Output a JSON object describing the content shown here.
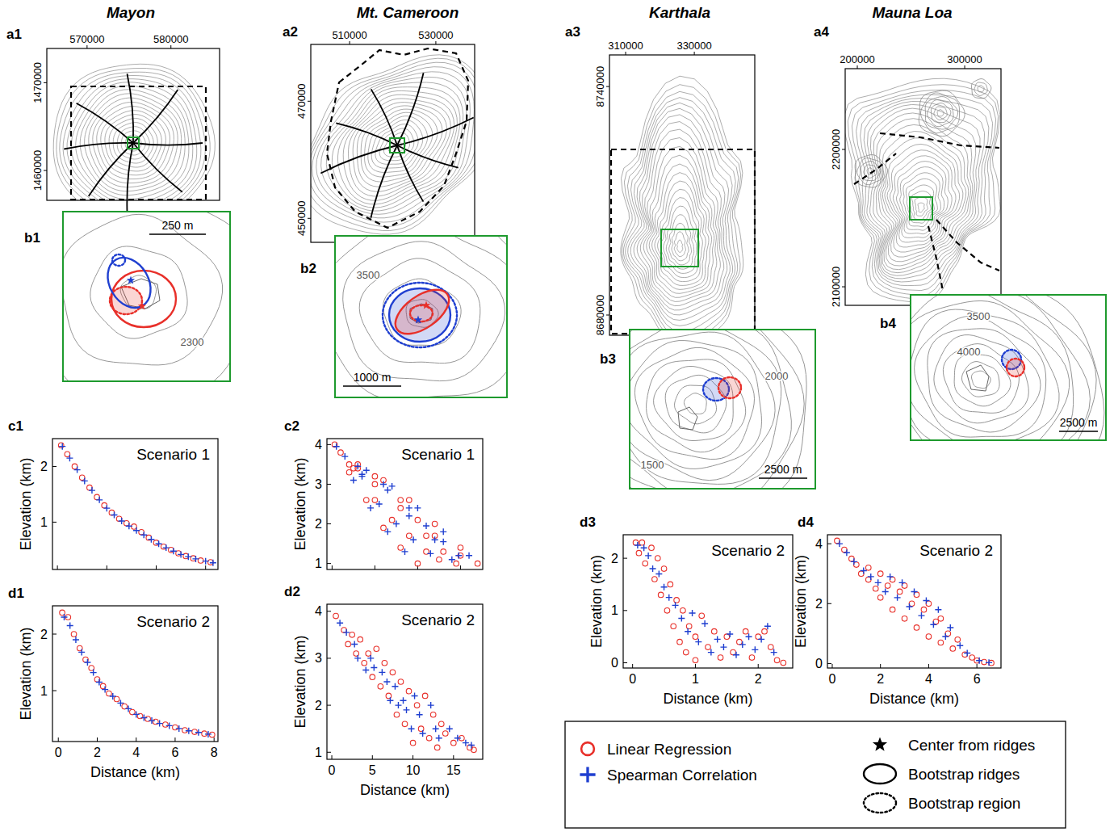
{
  "columns": [
    "Mayon",
    "Mt. Cameroon",
    "Karthala",
    "Mauna Loa"
  ],
  "maps": [
    {
      "panel": "a1",
      "xlim": [
        565200,
        585800
      ],
      "ylim": [
        1456600,
        1473900
      ],
      "xticks": [
        570000,
        580000
      ],
      "yticks": [
        1460000,
        1470000
      ]
    },
    {
      "panel": "a2",
      "xlim": [
        501000,
        539000
      ],
      "ylim": [
        445900,
        479700
      ],
      "xticks": [
        510000,
        530000
      ],
      "yticks": [
        450000,
        470000
      ]
    },
    {
      "panel": "a3",
      "xlim": [
        305300,
        347600
      ],
      "ylim": [
        8674700,
        8748300
      ],
      "xticks": [
        310000,
        330000
      ],
      "yticks": [
        8680000,
        8740000
      ]
    },
    {
      "panel": "a4",
      "xlim": [
        188700,
        333800
      ],
      "ylim": [
        2086500,
        2258800
      ],
      "xticks": [
        200000,
        300000
      ],
      "yticks": [
        2100000,
        2200000
      ]
    }
  ],
  "insets": [
    {
      "panel": "b1",
      "contour_labels": [
        2300
      ],
      "scale_bar": "250 m"
    },
    {
      "panel": "b2",
      "contour_labels": [
        3500
      ],
      "scale_bar": "1000 m"
    },
    {
      "panel": "b3",
      "contour_labels": [
        2000,
        1500
      ],
      "scale_bar": "2500 m"
    },
    {
      "panel": "b4",
      "contour_labels": [
        3500,
        4000
      ],
      "scale_bar": "2500 m"
    }
  ],
  "chart_data": [
    {
      "type": "scatter",
      "panel": "c1",
      "title": "Scenario 1",
      "ylabel": "Elevation (km)",
      "xlim": [
        -0.2,
        6.5
      ],
      "ylim": [
        0.15,
        2.5
      ],
      "xticks": [
        0,
        2,
        4,
        6
      ],
      "yticks": [
        1,
        2
      ],
      "tick_labels": "y",
      "series": [
        {
          "name": "Linear Regression",
          "color": "#e8302a",
          "marker": "circle",
          "x": [
            0.15,
            0.4,
            0.7,
            1.0,
            1.3,
            1.6,
            1.9,
            2.2,
            2.5,
            2.8,
            3.1,
            3.4,
            3.7,
            4.0,
            4.3,
            4.6,
            4.9,
            5.2,
            5.5,
            5.8,
            6.2
          ],
          "values": [
            2.38,
            2.22,
            2.0,
            1.8,
            1.62,
            1.45,
            1.3,
            1.17,
            1.06,
            0.98,
            0.92,
            0.82,
            0.72,
            0.63,
            0.56,
            0.5,
            0.44,
            0.39,
            0.35,
            0.31,
            0.28
          ]
        },
        {
          "name": "Spearman Correlation",
          "color": "#1f3fd0",
          "marker": "plus",
          "x": [
            0.2,
            0.5,
            0.8,
            1.1,
            1.4,
            1.7,
            2.0,
            2.3,
            2.6,
            2.9,
            3.2,
            3.5,
            3.8,
            4.1,
            4.4,
            4.7,
            5.0,
            5.3,
            5.6,
            6.0,
            6.3
          ],
          "values": [
            2.36,
            2.15,
            1.94,
            1.74,
            1.57,
            1.4,
            1.25,
            1.13,
            1.02,
            0.93,
            0.85,
            0.77,
            0.69,
            0.61,
            0.54,
            0.48,
            0.42,
            0.38,
            0.34,
            0.3,
            0.27
          ]
        }
      ]
    },
    {
      "type": "scatter",
      "panel": "d1",
      "title": "Scenario 2",
      "ylabel": "Elevation (km)",
      "xlabel": "Distance (km)",
      "xlim": [
        -0.3,
        8.2
      ],
      "ylim": [
        0.1,
        2.5
      ],
      "xticks": [
        0,
        2,
        4,
        6,
        8
      ],
      "yticks": [
        1,
        2
      ],
      "series": [
        {
          "name": "Linear Regression",
          "color": "#e8302a",
          "marker": "circle",
          "x": [
            0.2,
            0.5,
            0.8,
            1.1,
            1.4,
            1.7,
            2.0,
            2.3,
            2.6,
            3.0,
            3.4,
            3.8,
            4.2,
            4.6,
            5.0,
            5.5,
            6.0,
            6.5,
            7.0,
            7.5,
            7.9
          ],
          "values": [
            2.38,
            2.3,
            2.0,
            1.75,
            1.55,
            1.4,
            1.2,
            1.08,
            0.95,
            0.85,
            0.72,
            0.62,
            0.55,
            0.5,
            0.45,
            0.4,
            0.35,
            0.3,
            0.27,
            0.24,
            0.22
          ]
        },
        {
          "name": "Spearman Correlation",
          "color": "#1f3fd0",
          "marker": "plus",
          "x": [
            0.3,
            0.6,
            0.9,
            1.2,
            1.5,
            1.8,
            2.1,
            2.4,
            2.8,
            3.2,
            3.6,
            4.0,
            4.4,
            4.8,
            5.2,
            5.7,
            6.2,
            6.7,
            7.2,
            7.7
          ],
          "values": [
            2.3,
            2.15,
            1.9,
            1.68,
            1.5,
            1.32,
            1.15,
            1.02,
            0.9,
            0.78,
            0.68,
            0.58,
            0.52,
            0.47,
            0.42,
            0.38,
            0.33,
            0.29,
            0.26,
            0.23
          ]
        }
      ]
    },
    {
      "type": "scatter",
      "panel": "c2",
      "title": "Scenario 1",
      "ylabel": "Elevation (km)",
      "xlim": [
        -0.6,
        17.6
      ],
      "ylim": [
        0.85,
        4.15
      ],
      "xticks": [
        0,
        5,
        10,
        15
      ],
      "yticks": [
        1,
        2,
        3,
        4
      ],
      "tick_labels": "y",
      "series": [
        {
          "name": "Linear Regression",
          "color": "#e8302a",
          "marker": "circle",
          "x": [
            0.3,
            2,
            4,
            6,
            8,
            10,
            1,
            3,
            5,
            7,
            9,
            11,
            12.5,
            2,
            5,
            8,
            11,
            13,
            14.5,
            3,
            6,
            9,
            12,
            15,
            17,
            2.5,
            5,
            8,
            10,
            12,
            15
          ],
          "values": [
            4.0,
            3.3,
            2.6,
            1.9,
            1.4,
            1.0,
            3.8,
            3.4,
            2.6,
            2.1,
            1.7,
            1.3,
            1.1,
            3.5,
            3.2,
            2.4,
            1.7,
            1.3,
            1.0,
            3.5,
            3.1,
            2.6,
            2.0,
            1.4,
            1.0,
            3.4,
            3.0,
            2.6,
            2.1,
            1.7,
            1.2
          ]
        },
        {
          "name": "Spearman Correlation",
          "color": "#1f3fd0",
          "marker": "plus",
          "x": [
            0.5,
            2.5,
            4.5,
            6.5,
            8.5,
            1.5,
            3.5,
            5.5,
            7.5,
            9.5,
            11.5,
            3,
            6,
            9,
            12,
            14,
            4,
            7,
            10,
            13,
            16,
            3.5,
            6.5,
            9,
            11,
            13,
            14.8
          ],
          "values": [
            3.95,
            3.1,
            2.4,
            1.8,
            1.3,
            3.7,
            3.2,
            2.5,
            2.0,
            1.6,
            1.25,
            3.45,
            3.0,
            2.2,
            1.6,
            1.1,
            3.35,
            2.95,
            2.4,
            1.8,
            1.2,
            3.25,
            2.85,
            2.4,
            1.95,
            1.55,
            1.2
          ]
        }
      ]
    },
    {
      "type": "scatter",
      "panel": "d2",
      "title": "Scenario 2",
      "ylabel": "Elevation (km)",
      "xlabel": "Distance (km)",
      "xlim": [
        -0.6,
        18.6
      ],
      "ylim": [
        0.85,
        4.15
      ],
      "xticks": [
        0,
        5,
        10,
        15
      ],
      "yticks": [
        1,
        2,
        3,
        4
      ],
      "series": [
        {
          "name": "Linear Regression",
          "color": "#e8302a",
          "marker": "circle",
          "x": [
            0.5,
            1.5,
            2,
            2.5,
            3,
            3.5,
            4,
            4.5,
            5,
            5.5,
            6,
            6.5,
            7,
            7.5,
            8,
            8.5,
            9,
            9.5,
            10,
            10.5,
            11,
            11.5,
            12,
            12.5,
            13,
            13.5,
            14,
            15,
            16,
            17,
            17.5
          ],
          "values": [
            3.9,
            3.6,
            3.3,
            3.5,
            3.1,
            3.4,
            2.9,
            3.1,
            2.6,
            3.2,
            2.4,
            2.9,
            2.2,
            2.7,
            1.8,
            2.5,
            1.6,
            2.3,
            1.2,
            2.0,
            1.5,
            2.2,
            1.3,
            1.8,
            1.1,
            1.6,
            1.4,
            1.2,
            1.3,
            1.1,
            1.05
          ]
        },
        {
          "name": "Spearman Correlation",
          "color": "#1f3fd0",
          "marker": "plus",
          "x": [
            1,
            1.8,
            2.8,
            3.2,
            4.2,
            4.8,
            5.2,
            6.2,
            6.8,
            7.2,
            7.8,
            8.2,
            8.8,
            9.2,
            9.8,
            10.2,
            10.8,
            11.2,
            12.2,
            12.8,
            13.2,
            14.5,
            15.5,
            16.5,
            17.2
          ],
          "values": [
            3.75,
            3.55,
            3.3,
            3.0,
            2.75,
            3.0,
            2.8,
            2.7,
            2.5,
            2.1,
            2.4,
            2.0,
            2.1,
            1.9,
            1.5,
            2.2,
            1.8,
            1.4,
            2.0,
            1.5,
            1.3,
            1.5,
            1.3,
            1.2,
            1.15
          ]
        }
      ]
    },
    {
      "type": "scatter",
      "panel": "d3",
      "title": "Scenario 2",
      "ylabel": "Elevation (km)",
      "xlabel": "Distance (km)",
      "xlim": [
        -0.15,
        2.55
      ],
      "ylim": [
        -0.1,
        2.45
      ],
      "xticks": [
        0,
        1,
        2
      ],
      "yticks": [
        0,
        1,
        2
      ],
      "series": [
        {
          "name": "Linear Regression",
          "color": "#e8302a",
          "marker": "circle",
          "x": [
            0.05,
            0.1,
            0.15,
            0.2,
            0.3,
            0.35,
            0.4,
            0.45,
            0.5,
            0.55,
            0.6,
            0.65,
            0.7,
            0.75,
            0.8,
            0.85,
            0.9,
            1.0,
            1.0,
            1.1,
            1.2,
            1.3,
            1.4,
            1.5,
            1.6,
            1.7,
            1.8,
            1.9,
            2.0,
            2.1,
            2.2,
            2.3,
            2.4
          ],
          "values": [
            2.3,
            2.1,
            2.3,
            1.9,
            2.2,
            1.6,
            2.0,
            1.3,
            1.8,
            1.0,
            1.5,
            0.7,
            1.2,
            0.4,
            1.0,
            0.2,
            0.7,
            0.05,
            0.5,
            0.9,
            0.3,
            0.6,
            0.1,
            0.5,
            0.2,
            0.4,
            0.6,
            0.1,
            0.5,
            0.6,
            0.3,
            0.05,
            0.0
          ]
        },
        {
          "name": "Spearman Correlation",
          "color": "#1f3fd0",
          "marker": "plus",
          "x": [
            0.08,
            0.18,
            0.25,
            0.32,
            0.42,
            0.5,
            0.58,
            0.68,
            0.78,
            0.88,
            0.95,
            1.05,
            1.15,
            1.25,
            1.35,
            1.45,
            1.55,
            1.65,
            1.75,
            1.85,
            1.95,
            2.05,
            2.15,
            2.25
          ],
          "values": [
            2.25,
            2.2,
            2.05,
            1.8,
            1.7,
            1.45,
            1.25,
            1.1,
            0.85,
            0.6,
            0.95,
            0.4,
            0.75,
            0.2,
            0.45,
            0.3,
            0.55,
            0.15,
            0.35,
            0.5,
            0.25,
            0.45,
            0.7,
            0.2
          ]
        }
      ]
    },
    {
      "type": "scatter",
      "panel": "d4",
      "title": "Scenario 2",
      "ylabel": "Elevation (km)",
      "xlabel": "Distance (km)",
      "xlim": [
        -0.2,
        7.0
      ],
      "ylim": [
        -0.15,
        4.3
      ],
      "xticks": [
        0,
        2,
        4,
        6
      ],
      "yticks": [
        0,
        2,
        4
      ],
      "series": [
        {
          "name": "Linear Regression",
          "color": "#e8302a",
          "marker": "circle",
          "x": [
            0.2,
            0.5,
            0.8,
            1,
            1.2,
            1.5,
            1.5,
            1.8,
            2,
            2,
            2.3,
            2.5,
            2.5,
            2.8,
            3,
            3,
            3.3,
            3.5,
            3.5,
            3.8,
            4,
            4,
            4.3,
            4.5,
            4.5,
            4.8,
            5,
            5.2,
            5.5,
            5.8,
            6,
            6.3,
            6.6
          ],
          "values": [
            4.1,
            3.8,
            3.5,
            3.3,
            3.0,
            2.8,
            3.2,
            2.5,
            2.2,
            3.0,
            2.6,
            1.8,
            2.8,
            2.4,
            1.5,
            2.6,
            2.0,
            1.2,
            2.3,
            1.8,
            0.9,
            2.0,
            1.4,
            0.7,
            1.5,
            1.0,
            0.5,
            0.8,
            0.3,
            0.2,
            0.1,
            0.05,
            0.02
          ]
        },
        {
          "name": "Spearman Correlation",
          "color": "#1f3fd0",
          "marker": "plus",
          "x": [
            0.3,
            0.6,
            0.9,
            1.3,
            1.6,
            1.9,
            2.2,
            2.4,
            2.7,
            2.9,
            3.2,
            3.4,
            3.7,
            3.9,
            4.2,
            4.4,
            4.7,
            4.9,
            5.3,
            5.6,
            6.1,
            6.5
          ],
          "values": [
            4.0,
            3.7,
            3.4,
            3.1,
            2.9,
            2.7,
            2.4,
            2.9,
            2.2,
            2.7,
            1.9,
            2.4,
            1.6,
            2.1,
            1.3,
            1.8,
            0.9,
            1.2,
            0.6,
            0.35,
            0.1,
            0.03
          ]
        }
      ]
    }
  ],
  "key": {
    "symbols": [
      {
        "label": "Center from ridges",
        "marker": "star"
      },
      {
        "label": "Bootstrap ridges",
        "line_style": "solid"
      },
      {
        "label": "Bootstrap region",
        "line_style": "dotted"
      }
    ]
  }
}
